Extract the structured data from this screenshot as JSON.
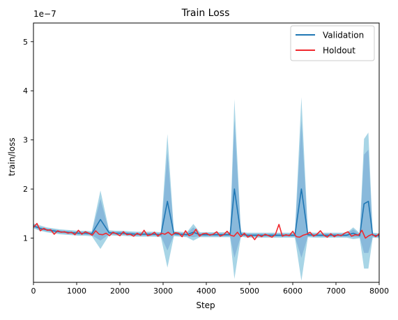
{
  "chart_data": {
    "type": "line",
    "title": "Train Loss",
    "xlabel": "Step",
    "ylabel": "train/loss",
    "y_scale_label": "1e−7",
    "xlim": [
      0,
      8000
    ],
    "ylim": [
      0.1,
      5.38
    ],
    "x_ticks": [
      0,
      1000,
      2000,
      3000,
      4000,
      5000,
      6000,
      7000,
      8000
    ],
    "y_ticks": [
      1,
      2,
      3,
      4,
      5
    ],
    "grid": false,
    "legend_position": "top-right",
    "band_colors": {
      "outer": "#a8d5e6",
      "inner": "#89b9db"
    },
    "series": [
      {
        "name": "Validation",
        "color": "#1f77b4",
        "points": [
          [
            0,
            1.25
          ],
          [
            150,
            1.2
          ],
          [
            300,
            1.17
          ],
          [
            450,
            1.15
          ],
          [
            600,
            1.13
          ],
          [
            750,
            1.12
          ],
          [
            900,
            1.11
          ],
          [
            1050,
            1.1
          ],
          [
            1200,
            1.1
          ],
          [
            1350,
            1.09
          ],
          [
            1550,
            1.38
          ],
          [
            1750,
            1.11
          ],
          [
            1900,
            1.1
          ],
          [
            2050,
            1.1
          ],
          [
            2200,
            1.09
          ],
          [
            2400,
            1.08
          ],
          [
            2600,
            1.08
          ],
          [
            2800,
            1.08
          ],
          [
            2950,
            1.07
          ],
          [
            3100,
            1.75
          ],
          [
            3250,
            1.09
          ],
          [
            3400,
            1.08
          ],
          [
            3550,
            1.07
          ],
          [
            3700,
            1.12
          ],
          [
            3850,
            1.07
          ],
          [
            4000,
            1.07
          ],
          [
            4200,
            1.07
          ],
          [
            4400,
            1.07
          ],
          [
            4550,
            1.07
          ],
          [
            4650,
            2.0
          ],
          [
            4800,
            1.08
          ],
          [
            4950,
            1.06
          ],
          [
            5100,
            1.06
          ],
          [
            5300,
            1.06
          ],
          [
            5500,
            1.06
          ],
          [
            5700,
            1.06
          ],
          [
            5900,
            1.06
          ],
          [
            6050,
            1.06
          ],
          [
            6200,
            2.0
          ],
          [
            6350,
            1.07
          ],
          [
            6500,
            1.06
          ],
          [
            6650,
            1.06
          ],
          [
            6800,
            1.06
          ],
          [
            6950,
            1.06
          ],
          [
            7100,
            1.06
          ],
          [
            7250,
            1.06
          ],
          [
            7400,
            1.1
          ],
          [
            7550,
            1.05
          ],
          [
            7650,
            1.7
          ],
          [
            7750,
            1.75
          ],
          [
            7850,
            1.06
          ],
          [
            8000,
            1.05
          ]
        ],
        "band_outer": [
          [
            0,
            1.3,
            1.2
          ],
          [
            150,
            1.26,
            1.15
          ],
          [
            300,
            1.22,
            1.12
          ],
          [
            450,
            1.2,
            1.1
          ],
          [
            600,
            1.18,
            1.08
          ],
          [
            750,
            1.17,
            1.07
          ],
          [
            900,
            1.16,
            1.06
          ],
          [
            1050,
            1.15,
            1.05
          ],
          [
            1200,
            1.15,
            1.05
          ],
          [
            1350,
            1.14,
            1.04
          ],
          [
            1550,
            1.97,
            0.78
          ],
          [
            1750,
            1.16,
            1.06
          ],
          [
            1900,
            1.15,
            1.05
          ],
          [
            2050,
            1.15,
            1.05
          ],
          [
            2200,
            1.14,
            1.04
          ],
          [
            2400,
            1.13,
            1.03
          ],
          [
            2600,
            1.13,
            1.03
          ],
          [
            2800,
            1.13,
            1.03
          ],
          [
            2950,
            1.12,
            1.02
          ],
          [
            3100,
            3.12,
            0.4
          ],
          [
            3250,
            1.14,
            1.04
          ],
          [
            3400,
            1.13,
            1.03
          ],
          [
            3550,
            1.12,
            1.02
          ],
          [
            3700,
            1.29,
            0.95
          ],
          [
            3850,
            1.12,
            1.02
          ],
          [
            4000,
            1.12,
            1.02
          ],
          [
            4200,
            1.12,
            1.02
          ],
          [
            4400,
            1.12,
            1.02
          ],
          [
            4550,
            1.12,
            1.02
          ],
          [
            4650,
            3.83,
            0.17
          ],
          [
            4800,
            1.13,
            1.03
          ],
          [
            4950,
            1.11,
            1.01
          ],
          [
            5100,
            1.11,
            1.01
          ],
          [
            5300,
            1.11,
            1.01
          ],
          [
            5500,
            1.11,
            1.01
          ],
          [
            5700,
            1.11,
            1.01
          ],
          [
            5900,
            1.11,
            1.01
          ],
          [
            6050,
            1.11,
            1.01
          ],
          [
            6200,
            3.87,
            0.13
          ],
          [
            6350,
            1.12,
            1.02
          ],
          [
            6500,
            1.11,
            1.01
          ],
          [
            6650,
            1.11,
            1.01
          ],
          [
            6800,
            1.11,
            1.01
          ],
          [
            6950,
            1.11,
            1.01
          ],
          [
            7100,
            1.11,
            1.01
          ],
          [
            7250,
            1.11,
            1.01
          ],
          [
            7400,
            1.22,
            0.98
          ],
          [
            7550,
            1.1,
            1.0
          ],
          [
            7650,
            3.02,
            0.38
          ],
          [
            7750,
            3.15,
            0.38
          ],
          [
            7850,
            1.11,
            1.01
          ],
          [
            8000,
            1.1,
            1.0
          ]
        ],
        "band_inner": [
          [
            0,
            1.28,
            1.22
          ],
          [
            150,
            1.23,
            1.17
          ],
          [
            300,
            1.2,
            1.14
          ],
          [
            450,
            1.18,
            1.12
          ],
          [
            600,
            1.16,
            1.1
          ],
          [
            750,
            1.15,
            1.09
          ],
          [
            900,
            1.14,
            1.08
          ],
          [
            1050,
            1.13,
            1.07
          ],
          [
            1200,
            1.13,
            1.07
          ],
          [
            1350,
            1.12,
            1.06
          ],
          [
            1550,
            1.8,
            0.95
          ],
          [
            1750,
            1.14,
            1.08
          ],
          [
            1900,
            1.13,
            1.07
          ],
          [
            2050,
            1.13,
            1.07
          ],
          [
            2200,
            1.12,
            1.06
          ],
          [
            2400,
            1.11,
            1.05
          ],
          [
            2600,
            1.11,
            1.05
          ],
          [
            2800,
            1.11,
            1.05
          ],
          [
            2950,
            1.1,
            1.04
          ],
          [
            3100,
            2.75,
            0.75
          ],
          [
            3250,
            1.12,
            1.06
          ],
          [
            3400,
            1.11,
            1.05
          ],
          [
            3550,
            1.1,
            1.04
          ],
          [
            3700,
            1.22,
            1.02
          ],
          [
            3850,
            1.1,
            1.04
          ],
          [
            4000,
            1.1,
            1.04
          ],
          [
            4200,
            1.1,
            1.04
          ],
          [
            4400,
            1.1,
            1.04
          ],
          [
            4550,
            1.1,
            1.04
          ],
          [
            4650,
            3.4,
            0.6
          ],
          [
            4800,
            1.11,
            1.05
          ],
          [
            4950,
            1.09,
            1.03
          ],
          [
            5100,
            1.09,
            1.03
          ],
          [
            5300,
            1.09,
            1.03
          ],
          [
            5500,
            1.09,
            1.03
          ],
          [
            5700,
            1.09,
            1.03
          ],
          [
            5900,
            1.09,
            1.03
          ],
          [
            6050,
            1.09,
            1.03
          ],
          [
            6200,
            3.4,
            0.6
          ],
          [
            6350,
            1.1,
            1.04
          ],
          [
            6500,
            1.09,
            1.03
          ],
          [
            6650,
            1.09,
            1.03
          ],
          [
            6800,
            1.09,
            1.03
          ],
          [
            6950,
            1.09,
            1.03
          ],
          [
            7100,
            1.09,
            1.03
          ],
          [
            7250,
            1.09,
            1.03
          ],
          [
            7400,
            1.18,
            1.02
          ],
          [
            7550,
            1.08,
            1.02
          ],
          [
            7650,
            2.7,
            0.7
          ],
          [
            7750,
            2.8,
            0.7
          ],
          [
            7850,
            1.09,
            1.03
          ],
          [
            8000,
            1.08,
            1.02
          ]
        ]
      },
      {
        "name": "Holdout",
        "color": "#f0282d",
        "points": [
          [
            0,
            1.22
          ],
          [
            80,
            1.3
          ],
          [
            160,
            1.15
          ],
          [
            240,
            1.2
          ],
          [
            320,
            1.16
          ],
          [
            400,
            1.17
          ],
          [
            480,
            1.08
          ],
          [
            560,
            1.15
          ],
          [
            640,
            1.12
          ],
          [
            720,
            1.13
          ],
          [
            800,
            1.1
          ],
          [
            880,
            1.12
          ],
          [
            960,
            1.07
          ],
          [
            1040,
            1.16
          ],
          [
            1120,
            1.08
          ],
          [
            1200,
            1.13
          ],
          [
            1280,
            1.1
          ],
          [
            1360,
            1.06
          ],
          [
            1440,
            1.15
          ],
          [
            1520,
            1.08
          ],
          [
            1600,
            1.07
          ],
          [
            1680,
            1.1
          ],
          [
            1760,
            1.05
          ],
          [
            1840,
            1.12
          ],
          [
            1920,
            1.09
          ],
          [
            2000,
            1.05
          ],
          [
            2080,
            1.13
          ],
          [
            2160,
            1.07
          ],
          [
            2240,
            1.08
          ],
          [
            2320,
            1.04
          ],
          [
            2400,
            1.1
          ],
          [
            2480,
            1.06
          ],
          [
            2560,
            1.16
          ],
          [
            2640,
            1.05
          ],
          [
            2720,
            1.07
          ],
          [
            2800,
            1.12
          ],
          [
            2880,
            1.04
          ],
          [
            2960,
            1.1
          ],
          [
            3040,
            1.08
          ],
          [
            3120,
            1.12
          ],
          [
            3200,
            1.06
          ],
          [
            3280,
            1.11
          ],
          [
            3360,
            1.1
          ],
          [
            3440,
            1.03
          ],
          [
            3520,
            1.15
          ],
          [
            3600,
            1.05
          ],
          [
            3680,
            1.08
          ],
          [
            3760,
            1.18
          ],
          [
            3840,
            1.04
          ],
          [
            3920,
            1.09
          ],
          [
            4000,
            1.1
          ],
          [
            4080,
            1.06
          ],
          [
            4160,
            1.08
          ],
          [
            4240,
            1.13
          ],
          [
            4320,
            1.04
          ],
          [
            4400,
            1.07
          ],
          [
            4480,
            1.14
          ],
          [
            4560,
            1.06
          ],
          [
            4640,
            1.04
          ],
          [
            4720,
            1.12
          ],
          [
            4800,
            1.03
          ],
          [
            4880,
            1.1
          ],
          [
            4960,
            1.02
          ],
          [
            5040,
            1.06
          ],
          [
            5120,
            0.97
          ],
          [
            5200,
            1.07
          ],
          [
            5280,
            1.03
          ],
          [
            5360,
            1.08
          ],
          [
            5440,
            1.05
          ],
          [
            5520,
            1.02
          ],
          [
            5600,
            1.08
          ],
          [
            5680,
            1.28
          ],
          [
            5760,
            1.04
          ],
          [
            5840,
            1.07
          ],
          [
            5920,
            1.05
          ],
          [
            6000,
            1.14
          ],
          [
            6080,
            1.03
          ],
          [
            6160,
            1.02
          ],
          [
            6240,
            1.06
          ],
          [
            6320,
            1.08
          ],
          [
            6400,
            1.12
          ],
          [
            6480,
            1.04
          ],
          [
            6560,
            1.08
          ],
          [
            6640,
            1.15
          ],
          [
            6720,
            1.06
          ],
          [
            6800,
            1.02
          ],
          [
            6880,
            1.09
          ],
          [
            6960,
            1.03
          ],
          [
            7040,
            1.07
          ],
          [
            7120,
            1.05
          ],
          [
            7200,
            1.1
          ],
          [
            7280,
            1.13
          ],
          [
            7360,
            1.04
          ],
          [
            7440,
            1.07
          ],
          [
            7520,
            1.06
          ],
          [
            7600,
            1.16
          ],
          [
            7680,
            1.0
          ],
          [
            7760,
            1.05
          ],
          [
            7840,
            1.08
          ],
          [
            7920,
            1.03
          ],
          [
            8000,
            1.09
          ]
        ]
      }
    ]
  }
}
